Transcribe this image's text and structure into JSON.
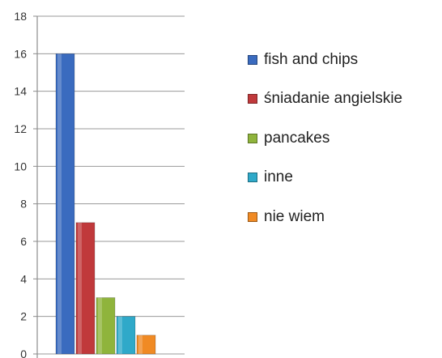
{
  "chart_data": {
    "type": "bar",
    "title": "",
    "xlabel": "",
    "ylabel": "",
    "ylim": [
      0,
      18
    ],
    "yticks": [
      "0",
      "2",
      "4",
      "6",
      "8",
      "10",
      "12",
      "14",
      "16",
      "18"
    ],
    "grid": true,
    "legend_position": "right",
    "series": [
      {
        "name": "fish and chips",
        "value": 16,
        "color": "#3a6bbf"
      },
      {
        "name": "śniadanie angielskie",
        "value": 7,
        "color": "#c0393b"
      },
      {
        "name": "pancakes",
        "value": 3,
        "color": "#8fb43c"
      },
      {
        "name": "inne",
        "value": 2,
        "color": "#2fa9c9"
      },
      {
        "name": "nie wiem",
        "value": 1,
        "color": "#f08a24"
      }
    ]
  }
}
